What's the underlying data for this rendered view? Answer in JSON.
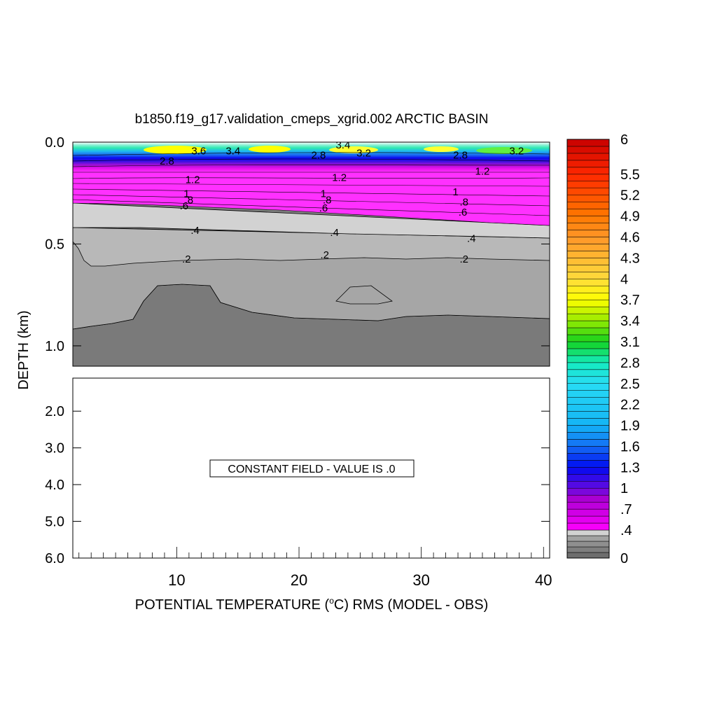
{
  "chart_data": {
    "type": "heatmap",
    "title": "b1850.f19_g17.validation_cmeps_xgrid.002 ARCTIC BASIN",
    "xlabel_prefix": "POTENTIAL TEMPERATURE (",
    "xlabel_deg": "o",
    "xlabel_suffix": "C) RMS (MODEL - OBS)",
    "ylabel": "DEPTH (km)",
    "x_ticks": [
      10,
      20,
      30,
      40
    ],
    "xlim": [
      1.5,
      40.5
    ],
    "upper_panel": {
      "ylim": [
        0.0,
        1.1
      ],
      "y_ticks": [
        "0.0",
        "0.5",
        "1.0"
      ],
      "y_tick_values": [
        0.0,
        0.5,
        1.0
      ]
    },
    "lower_panel": {
      "ylim": [
        1.1,
        6.0
      ],
      "y_ticks": [
        "2.0",
        "3.0",
        "4.0",
        "5.0",
        "6.0"
      ],
      "y_tick_values": [
        2.0,
        3.0,
        4.0,
        5.0,
        6.0
      ],
      "annotation": "CONSTANT FIELD - VALUE IS .0"
    },
    "colorbar": {
      "labels": [
        "6",
        "5.5",
        "5.2",
        "4.9",
        "4.6",
        "4.3",
        "4",
        "3.7",
        "3.4",
        "3.1",
        "2.8",
        "2.5",
        "2.2",
        "1.9",
        "1.6",
        "1.3",
        "1",
        ".7",
        ".4",
        "0"
      ],
      "label_values": [
        6.0,
        5.5,
        5.2,
        4.9,
        4.6,
        4.3,
        4.0,
        3.7,
        3.4,
        3.1,
        2.8,
        2.5,
        2.2,
        1.9,
        1.6,
        1.3,
        1.0,
        0.7,
        0.4,
        0.0
      ]
    },
    "contour_labels": [
      {
        "text": "3.4",
        "x": 23.6,
        "depth": 0.01
      },
      {
        "text": "3.6",
        "x": 11.8,
        "depth": 0.04
      },
      {
        "text": "3.4",
        "x": 14.6,
        "depth": 0.04
      },
      {
        "text": "3.2",
        "x": 25.3,
        "depth": 0.05
      },
      {
        "text": "3.2",
        "x": 37.8,
        "depth": 0.04
      },
      {
        "text": "2.8",
        "x": 9.2,
        "depth": 0.09
      },
      {
        "text": "2.8",
        "x": 21.6,
        "depth": 0.06
      },
      {
        "text": "2.8",
        "x": 33.2,
        "depth": 0.06
      },
      {
        "text": "1",
        "x": 10.8,
        "depth": 0.25
      },
      {
        "text": ".8",
        "x": 11.0,
        "depth": 0.28
      },
      {
        "text": ".6",
        "x": 10.6,
        "depth": 0.31
      },
      {
        "text": "1",
        "x": 22.0,
        "depth": 0.25
      },
      {
        "text": ".8",
        "x": 22.3,
        "depth": 0.28
      },
      {
        "text": ".6",
        "x": 22.0,
        "depth": 0.32
      },
      {
        "text": "1",
        "x": 32.8,
        "depth": 0.24
      },
      {
        "text": ".8",
        "x": 33.5,
        "depth": 0.29
      },
      {
        "text": ".6",
        "x": 33.4,
        "depth": 0.34
      },
      {
        "text": ".4",
        "x": 11.5,
        "depth": 0.43
      },
      {
        "text": ".4",
        "x": 22.9,
        "depth": 0.44
      },
      {
        "text": ".4",
        "x": 34.1,
        "depth": 0.47
      },
      {
        "text": ".2",
        "x": 10.8,
        "depth": 0.57
      },
      {
        "text": ".2",
        "x": 22.1,
        "depth": 0.55
      },
      {
        "text": ".2",
        "x": 33.5,
        "depth": 0.57
      },
      {
        "text": "1.2",
        "x": 11.3,
        "depth": 0.18
      },
      {
        "text": "1.2",
        "x": 23.3,
        "depth": 0.17
      },
      {
        "text": "1.2",
        "x": 35.0,
        "depth": 0.14
      }
    ]
  }
}
